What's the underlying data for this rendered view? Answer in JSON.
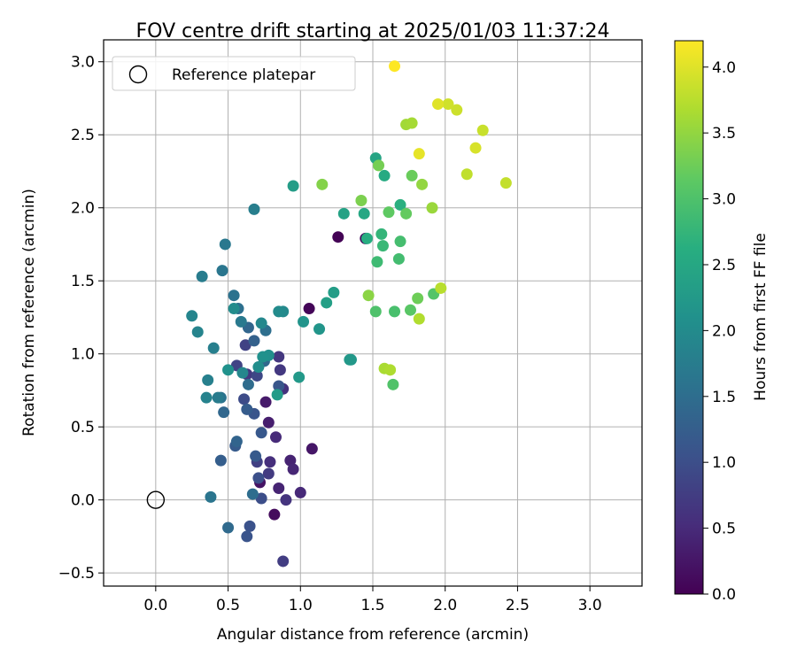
{
  "chart_data": {
    "type": "scatter",
    "title": "FOV centre drift starting at 2025/01/03 11:37:24",
    "xlabel": "Angular distance from reference (arcmin)",
    "ylabel": "Rotation from reference (arcmin)",
    "xlim": [
      -0.36,
      3.36
    ],
    "ylim": [
      -0.59,
      3.15
    ],
    "x_ticks": [
      "0.0",
      "0.5",
      "1.0",
      "1.5",
      "2.0",
      "2.5",
      "3.0"
    ],
    "y_ticks": [
      "−0.5",
      "0.0",
      "0.5",
      "1.0",
      "1.5",
      "2.0",
      "2.5",
      "3.0"
    ],
    "grid": true,
    "legend": {
      "placement": "top-left",
      "entries": [
        "Reference platepar"
      ]
    },
    "reference_point": {
      "x": 0.0,
      "y": 0.0
    },
    "colorbar": {
      "label": "Hours from first FF file",
      "colormap": "viridis",
      "range": [
        0.0,
        4.2
      ],
      "ticks": [
        "0.0",
        "0.5",
        "1.0",
        "1.5",
        "2.0",
        "2.5",
        "3.0",
        "3.5",
        "4.0"
      ]
    },
    "points": [
      {
        "x": 1.26,
        "y": 1.8,
        "c": 0.02
      },
      {
        "x": 1.45,
        "y": 1.79,
        "c": 0.1
      },
      {
        "x": 1.06,
        "y": 1.31,
        "c": 0.05
      },
      {
        "x": 0.82,
        "y": -0.1,
        "c": 0.12
      },
      {
        "x": 0.72,
        "y": 0.12,
        "c": 0.22
      },
      {
        "x": 1.08,
        "y": 0.35,
        "c": 0.25
      },
      {
        "x": 0.76,
        "y": 0.67,
        "c": 0.3
      },
      {
        "x": 0.78,
        "y": 0.53,
        "c": 0.35
      },
      {
        "x": 0.93,
        "y": 0.27,
        "c": 0.4
      },
      {
        "x": 0.85,
        "y": 0.08,
        "c": 0.42
      },
      {
        "x": 0.95,
        "y": 0.21,
        "c": 0.45
      },
      {
        "x": 1.0,
        "y": 0.05,
        "c": 0.48
      },
      {
        "x": 0.83,
        "y": 0.43,
        "c": 0.5
      },
      {
        "x": 0.79,
        "y": 0.26,
        "c": 0.55
      },
      {
        "x": 0.88,
        "y": 0.76,
        "c": 0.6
      },
      {
        "x": 0.9,
        "y": 0.0,
        "c": 0.62
      },
      {
        "x": 0.85,
        "y": 0.98,
        "c": 0.66
      },
      {
        "x": 0.86,
        "y": 0.89,
        "c": 0.68
      },
      {
        "x": 0.63,
        "y": 0.86,
        "c": 0.7
      },
      {
        "x": 0.78,
        "y": 0.18,
        "c": 0.72
      },
      {
        "x": 0.88,
        "y": -0.42,
        "c": 0.75
      },
      {
        "x": 0.7,
        "y": 0.26,
        "c": 0.78
      },
      {
        "x": 0.62,
        "y": 1.06,
        "c": 0.82
      },
      {
        "x": 0.56,
        "y": 0.92,
        "c": 0.85
      },
      {
        "x": 0.7,
        "y": 0.85,
        "c": 0.9
      },
      {
        "x": 0.61,
        "y": 0.69,
        "c": 0.95
      },
      {
        "x": 0.73,
        "y": 0.01,
        "c": 1.0
      },
      {
        "x": 0.71,
        "y": 0.15,
        "c": 1.02
      },
      {
        "x": 0.65,
        "y": -0.18,
        "c": 1.05
      },
      {
        "x": 0.63,
        "y": -0.25,
        "c": 1.08
      },
      {
        "x": 0.68,
        "y": 0.59,
        "c": 1.1
      },
      {
        "x": 0.85,
        "y": 0.78,
        "c": 1.12
      },
      {
        "x": 0.73,
        "y": 0.46,
        "c": 1.15
      },
      {
        "x": 0.69,
        "y": 0.3,
        "c": 1.18
      },
      {
        "x": 0.55,
        "y": 0.37,
        "c": 1.2
      },
      {
        "x": 0.63,
        "y": 0.62,
        "c": 1.22
      },
      {
        "x": 0.45,
        "y": 0.27,
        "c": 1.25
      },
      {
        "x": 0.68,
        "y": 1.09,
        "c": 1.3
      },
      {
        "x": 0.56,
        "y": 0.4,
        "c": 1.35
      },
      {
        "x": 0.64,
        "y": 1.18,
        "c": 1.38
      },
      {
        "x": 0.47,
        "y": 0.6,
        "c": 1.4
      },
      {
        "x": 0.75,
        "y": 0.95,
        "c": 1.42
      },
      {
        "x": 0.5,
        "y": -0.19,
        "c": 1.45
      },
      {
        "x": 0.64,
        "y": 0.79,
        "c": 1.48
      },
      {
        "x": 0.67,
        "y": 0.04,
        "c": 1.5
      },
      {
        "x": 0.76,
        "y": 1.16,
        "c": 1.52
      },
      {
        "x": 0.57,
        "y": 1.31,
        "c": 1.55
      },
      {
        "x": 0.54,
        "y": 1.4,
        "c": 1.58
      },
      {
        "x": 0.45,
        "y": 0.7,
        "c": 1.6
      },
      {
        "x": 0.38,
        "y": 0.02,
        "c": 1.62
      },
      {
        "x": 0.46,
        "y": 1.57,
        "c": 1.65
      },
      {
        "x": 0.48,
        "y": 1.75,
        "c": 1.68
      },
      {
        "x": 0.59,
        "y": 1.22,
        "c": 1.7
      },
      {
        "x": 0.43,
        "y": 0.7,
        "c": 1.72
      },
      {
        "x": 0.32,
        "y": 1.53,
        "c": 1.75
      },
      {
        "x": 0.68,
        "y": 1.99,
        "c": 1.78
      },
      {
        "x": 0.4,
        "y": 1.04,
        "c": 1.8
      },
      {
        "x": 0.36,
        "y": 0.82,
        "c": 1.82
      },
      {
        "x": 0.35,
        "y": 0.7,
        "c": 1.85
      },
      {
        "x": 0.29,
        "y": 1.15,
        "c": 1.88
      },
      {
        "x": 0.25,
        "y": 1.26,
        "c": 1.9
      },
      {
        "x": 0.6,
        "y": 0.87,
        "c": 1.93
      },
      {
        "x": 0.73,
        "y": 1.21,
        "c": 1.95
      },
      {
        "x": 0.88,
        "y": 1.29,
        "c": 1.97
      },
      {
        "x": 0.85,
        "y": 1.29,
        "c": 2.0
      },
      {
        "x": 0.54,
        "y": 1.31,
        "c": 2.02
      },
      {
        "x": 0.71,
        "y": 0.91,
        "c": 2.05
      },
      {
        "x": 0.78,
        "y": 0.99,
        "c": 2.07
      },
      {
        "x": 0.74,
        "y": 0.98,
        "c": 2.1
      },
      {
        "x": 0.5,
        "y": 0.89,
        "c": 2.12
      },
      {
        "x": 1.02,
        "y": 1.22,
        "c": 2.15
      },
      {
        "x": 1.13,
        "y": 1.17,
        "c": 2.18
      },
      {
        "x": 1.35,
        "y": 0.96,
        "c": 2.2
      },
      {
        "x": 1.34,
        "y": 0.96,
        "c": 2.22
      },
      {
        "x": 0.99,
        "y": 0.84,
        "c": 2.25
      },
      {
        "x": 0.84,
        "y": 0.72,
        "c": 2.28
      },
      {
        "x": 0.95,
        "y": 2.15,
        "c": 2.3
      },
      {
        "x": 1.23,
        "y": 1.42,
        "c": 2.32
      },
      {
        "x": 1.18,
        "y": 1.35,
        "c": 2.35
      },
      {
        "x": 1.3,
        "y": 1.96,
        "c": 2.4
      },
      {
        "x": 1.52,
        "y": 2.34,
        "c": 2.45
      },
      {
        "x": 1.44,
        "y": 1.96,
        "c": 2.5
      },
      {
        "x": 1.58,
        "y": 2.22,
        "c": 2.55
      },
      {
        "x": 1.46,
        "y": 1.79,
        "c": 2.6
      },
      {
        "x": 1.69,
        "y": 2.02,
        "c": 2.65
      },
      {
        "x": 1.56,
        "y": 1.82,
        "c": 2.75
      },
      {
        "x": 1.57,
        "y": 1.74,
        "c": 2.8
      },
      {
        "x": 1.53,
        "y": 1.63,
        "c": 2.85
      },
      {
        "x": 1.68,
        "y": 1.65,
        "c": 2.9
      },
      {
        "x": 1.69,
        "y": 1.77,
        "c": 2.92
      },
      {
        "x": 1.65,
        "y": 1.29,
        "c": 2.95
      },
      {
        "x": 1.52,
        "y": 1.29,
        "c": 3.0
      },
      {
        "x": 1.64,
        "y": 0.79,
        "c": 3.02
      },
      {
        "x": 1.92,
        "y": 1.41,
        "c": 3.05
      },
      {
        "x": 1.76,
        "y": 1.3,
        "c": 3.1
      },
      {
        "x": 1.61,
        "y": 1.97,
        "c": 3.15
      },
      {
        "x": 1.73,
        "y": 1.96,
        "c": 3.18
      },
      {
        "x": 1.77,
        "y": 2.22,
        "c": 3.22
      },
      {
        "x": 1.81,
        "y": 1.38,
        "c": 3.25
      },
      {
        "x": 1.54,
        "y": 2.29,
        "c": 3.3
      },
      {
        "x": 1.42,
        "y": 2.05,
        "c": 3.35
      },
      {
        "x": 1.15,
        "y": 2.16,
        "c": 3.4
      },
      {
        "x": 1.47,
        "y": 1.4,
        "c": 3.45
      },
      {
        "x": 1.84,
        "y": 2.16,
        "c": 3.5
      },
      {
        "x": 1.91,
        "y": 2.0,
        "c": 3.55
      },
      {
        "x": 1.73,
        "y": 2.57,
        "c": 3.6
      },
      {
        "x": 1.77,
        "y": 2.58,
        "c": 3.62
      },
      {
        "x": 1.58,
        "y": 0.9,
        "c": 3.65
      },
      {
        "x": 1.62,
        "y": 0.89,
        "c": 3.68
      },
      {
        "x": 1.82,
        "y": 1.24,
        "c": 3.7
      },
      {
        "x": 1.97,
        "y": 1.45,
        "c": 3.75
      },
      {
        "x": 2.15,
        "y": 2.23,
        "c": 3.8
      },
      {
        "x": 2.42,
        "y": 2.17,
        "c": 3.82
      },
      {
        "x": 2.26,
        "y": 2.53,
        "c": 3.85
      },
      {
        "x": 2.08,
        "y": 2.67,
        "c": 3.88
      },
      {
        "x": 2.02,
        "y": 2.71,
        "c": 3.9
      },
      {
        "x": 2.21,
        "y": 2.41,
        "c": 3.95
      },
      {
        "x": 1.95,
        "y": 2.71,
        "c": 4.0
      },
      {
        "x": 1.82,
        "y": 2.37,
        "c": 4.05
      },
      {
        "x": 1.65,
        "y": 2.97,
        "c": 4.2
      }
    ]
  }
}
